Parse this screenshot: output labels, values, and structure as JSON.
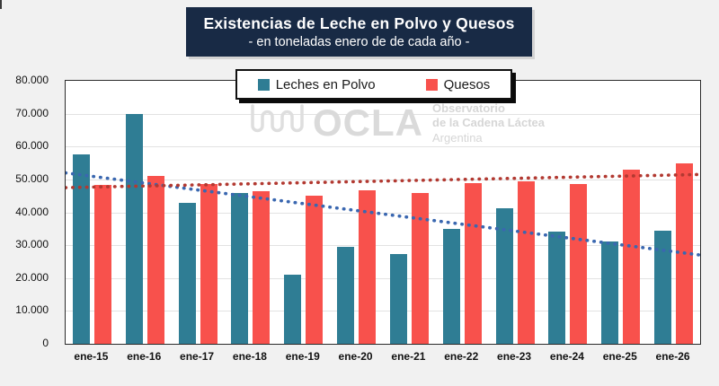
{
  "header": {
    "title": "Existencias de Leche en Polvo y Quesos",
    "subtitle": "- en toneladas enero de de cada año -"
  },
  "legend": {
    "items": [
      {
        "label": "Leches en Polvo",
        "color": "#2F7D94"
      },
      {
        "label": "Quesos",
        "color": "#F8514C"
      }
    ]
  },
  "watermark": {
    "logo": "OCLA",
    "org_lines": [
      "Observatorio",
      "de la Cadena Láctea",
      "Argentina"
    ]
  },
  "chart_data": {
    "type": "bar",
    "title": "Existencias de Leche en Polvo y Quesos",
    "subtitle": "- en toneladas enero de de cada año -",
    "unit": "toneladas",
    "categories": [
      "ene-15",
      "ene-16",
      "ene-17",
      "ene-18",
      "ene-19",
      "ene-20",
      "ene-21",
      "ene-22",
      "ene-23",
      "ene-24",
      "ene-25",
      "ene-26"
    ],
    "series": [
      {
        "name": "Leches en Polvo",
        "color": "#2F7D94",
        "values": [
          57500,
          70000,
          43000,
          46000,
          21000,
          29500,
          27200,
          35000,
          41300,
          34000,
          31000,
          34500
        ]
      },
      {
        "name": "Quesos",
        "color": "#F8514C",
        "values": [
          48300,
          51000,
          48500,
          46500,
          45000,
          46800,
          45800,
          49000,
          49500,
          48500,
          53000,
          54800
        ]
      }
    ],
    "trendlines": [
      {
        "series": "Leches en Polvo",
        "style": "dotted",
        "color": "#3A67B0",
        "start": 52000,
        "end": 27000
      },
      {
        "series": "Quesos",
        "style": "dotted",
        "color": "#B23931",
        "start": 47500,
        "end": 51500
      }
    ],
    "ylim": [
      0,
      80000
    ],
    "ytick_values": [
      80000,
      70000,
      60000,
      50000,
      40000,
      30000,
      20000,
      10000,
      0
    ],
    "ytick_labels": [
      "80.000",
      "70.000",
      "60.000",
      "50.000",
      "40.000",
      "30.000",
      "20.000",
      "10.000",
      "0"
    ],
    "grid": true,
    "legend_position": "top-center"
  }
}
